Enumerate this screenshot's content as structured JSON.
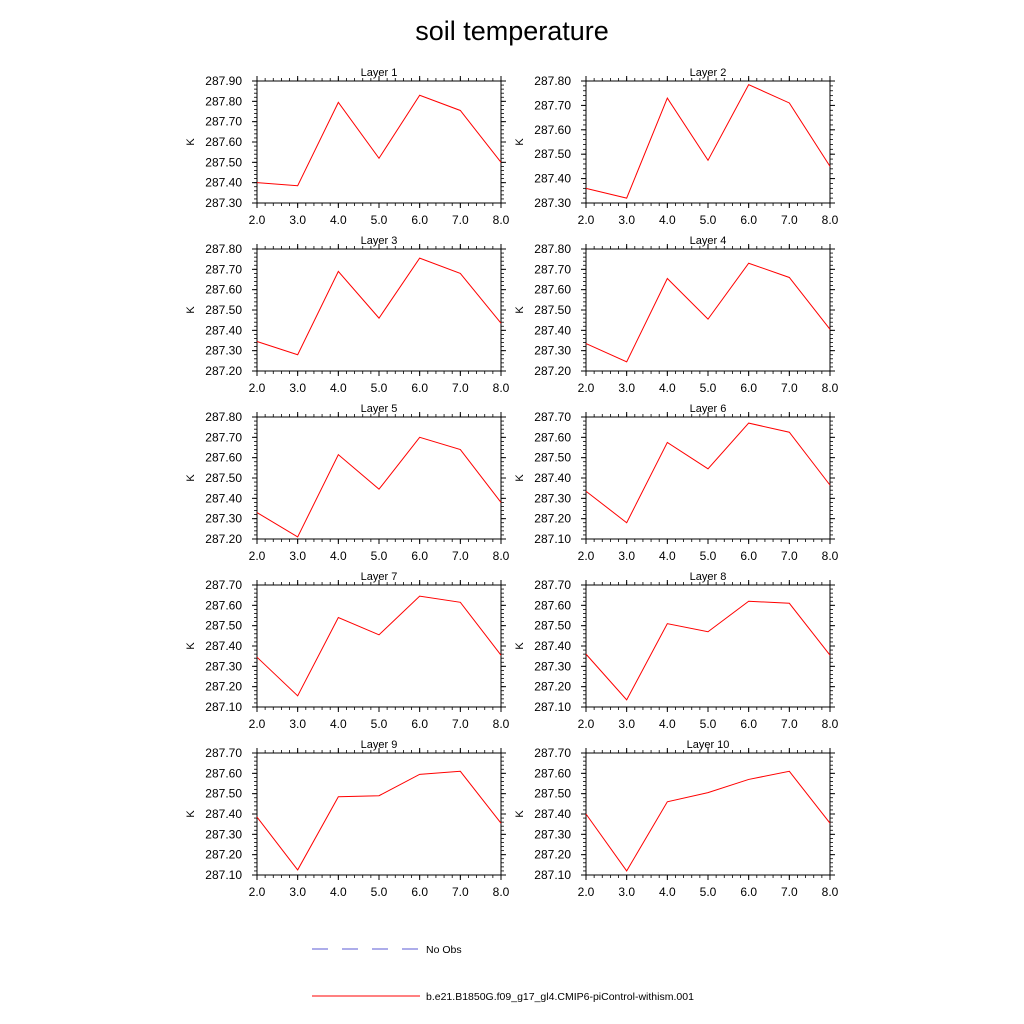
{
  "title": "soil temperature",
  "legend": {
    "items": [
      {
        "label": "No Obs",
        "style": "dashed",
        "color": "#5b5bd6"
      },
      {
        "label": "b.e21.B1850G.f09_g17_gl4.CMIP6-piControl-withism.001",
        "style": "solid",
        "color": "#ff0000"
      }
    ]
  },
  "chart_data": [
    {
      "type": "line",
      "title": "Layer 1",
      "xlabel": "",
      "ylabel": "K",
      "x": [
        2,
        3,
        4,
        5,
        6,
        7,
        8
      ],
      "xlim": [
        2,
        8
      ],
      "xticks": [
        "2.0",
        "3.0",
        "4.0",
        "5.0",
        "6.0",
        "7.0",
        "8.0"
      ],
      "ylim": [
        287.3,
        287.9
      ],
      "yticks": [
        "287.30",
        "287.40",
        "287.50",
        "287.60",
        "287.70",
        "287.80",
        "287.90"
      ],
      "series": [
        {
          "name": "b.e21.B1850G.f09_g17_gl4.CMIP6-piControl-withism.001",
          "values": [
            287.4,
            287.385,
            287.795,
            287.52,
            287.83,
            287.755,
            287.5
          ]
        }
      ]
    },
    {
      "type": "line",
      "title": "Layer 2",
      "xlabel": "",
      "ylabel": "K",
      "x": [
        2,
        3,
        4,
        5,
        6,
        7,
        8
      ],
      "xlim": [
        2,
        8
      ],
      "xticks": [
        "2.0",
        "3.0",
        "4.0",
        "5.0",
        "6.0",
        "7.0",
        "8.0"
      ],
      "ylim": [
        287.3,
        287.8
      ],
      "yticks": [
        "287.30",
        "287.40",
        "287.50",
        "287.60",
        "287.70",
        "287.80"
      ],
      "series": [
        {
          "name": "b.e21.B1850G.f09_g17_gl4.CMIP6-piControl-withism.001",
          "values": [
            287.36,
            287.32,
            287.73,
            287.475,
            287.785,
            287.71,
            287.45
          ]
        }
      ]
    },
    {
      "type": "line",
      "title": "Layer 3",
      "xlabel": "",
      "ylabel": "K",
      "x": [
        2,
        3,
        4,
        5,
        6,
        7,
        8
      ],
      "xlim": [
        2,
        8
      ],
      "xticks": [
        "2.0",
        "3.0",
        "4.0",
        "5.0",
        "6.0",
        "7.0",
        "8.0"
      ],
      "ylim": [
        287.2,
        287.8
      ],
      "yticks": [
        "287.20",
        "287.30",
        "287.40",
        "287.50",
        "287.60",
        "287.70",
        "287.80"
      ],
      "series": [
        {
          "name": "b.e21.B1850G.f09_g17_gl4.CMIP6-piControl-withism.001",
          "values": [
            287.345,
            287.28,
            287.69,
            287.46,
            287.755,
            287.68,
            287.435
          ]
        }
      ]
    },
    {
      "type": "line",
      "title": "Layer 4",
      "xlabel": "",
      "ylabel": "K",
      "x": [
        2,
        3,
        4,
        5,
        6,
        7,
        8
      ],
      "xlim": [
        2,
        8
      ],
      "xticks": [
        "2.0",
        "3.0",
        "4.0",
        "5.0",
        "6.0",
        "7.0",
        "8.0"
      ],
      "ylim": [
        287.2,
        287.8
      ],
      "yticks": [
        "287.20",
        "287.30",
        "287.40",
        "287.50",
        "287.60",
        "287.70",
        "287.80"
      ],
      "series": [
        {
          "name": "b.e21.B1850G.f09_g17_gl4.CMIP6-piControl-withism.001",
          "values": [
            287.335,
            287.245,
            287.655,
            287.455,
            287.73,
            287.66,
            287.405
          ]
        }
      ]
    },
    {
      "type": "line",
      "title": "Layer 5",
      "xlabel": "",
      "ylabel": "K",
      "x": [
        2,
        3,
        4,
        5,
        6,
        7,
        8
      ],
      "xlim": [
        2,
        8
      ],
      "xticks": [
        "2.0",
        "3.0",
        "4.0",
        "5.0",
        "6.0",
        "7.0",
        "8.0"
      ],
      "ylim": [
        287.2,
        287.8
      ],
      "yticks": [
        "287.20",
        "287.30",
        "287.40",
        "287.50",
        "287.60",
        "287.70",
        "287.80"
      ],
      "series": [
        {
          "name": "b.e21.B1850G.f09_g17_gl4.CMIP6-piControl-withism.001",
          "values": [
            287.33,
            287.21,
            287.615,
            287.445,
            287.7,
            287.64,
            287.38
          ]
        }
      ]
    },
    {
      "type": "line",
      "title": "Layer 6",
      "xlabel": "",
      "ylabel": "K",
      "x": [
        2,
        3,
        4,
        5,
        6,
        7,
        8
      ],
      "xlim": [
        2,
        8
      ],
      "xticks": [
        "2.0",
        "3.0",
        "4.0",
        "5.0",
        "6.0",
        "7.0",
        "8.0"
      ],
      "ylim": [
        287.1,
        287.7
      ],
      "yticks": [
        "287.10",
        "287.20",
        "287.30",
        "287.40",
        "287.50",
        "287.60",
        "287.70"
      ],
      "series": [
        {
          "name": "b.e21.B1850G.f09_g17_gl4.CMIP6-piControl-withism.001",
          "values": [
            287.335,
            287.18,
            287.575,
            287.445,
            287.67,
            287.625,
            287.365
          ]
        }
      ]
    },
    {
      "type": "line",
      "title": "Layer 7",
      "xlabel": "",
      "ylabel": "K",
      "x": [
        2,
        3,
        4,
        5,
        6,
        7,
        8
      ],
      "xlim": [
        2,
        8
      ],
      "xticks": [
        "2.0",
        "3.0",
        "4.0",
        "5.0",
        "6.0",
        "7.0",
        "8.0"
      ],
      "ylim": [
        287.1,
        287.7
      ],
      "yticks": [
        "287.10",
        "287.20",
        "287.30",
        "287.40",
        "287.50",
        "287.60",
        "287.70"
      ],
      "series": [
        {
          "name": "b.e21.B1850G.f09_g17_gl4.CMIP6-piControl-withism.001",
          "values": [
            287.345,
            287.155,
            287.54,
            287.455,
            287.645,
            287.615,
            287.355
          ]
        }
      ]
    },
    {
      "type": "line",
      "title": "Layer 8",
      "xlabel": "",
      "ylabel": "K",
      "x": [
        2,
        3,
        4,
        5,
        6,
        7,
        8
      ],
      "xlim": [
        2,
        8
      ],
      "xticks": [
        "2.0",
        "3.0",
        "4.0",
        "5.0",
        "6.0",
        "7.0",
        "8.0"
      ],
      "ylim": [
        287.1,
        287.7
      ],
      "yticks": [
        "287.10",
        "287.20",
        "287.30",
        "287.40",
        "287.50",
        "287.60",
        "287.70"
      ],
      "series": [
        {
          "name": "b.e21.B1850G.f09_g17_gl4.CMIP6-piControl-withism.001",
          "values": [
            287.36,
            287.135,
            287.51,
            287.47,
            287.62,
            287.61,
            287.355
          ]
        }
      ]
    },
    {
      "type": "line",
      "title": "Layer 9",
      "xlabel": "",
      "ylabel": "K",
      "x": [
        2,
        3,
        4,
        5,
        6,
        7,
        8
      ],
      "xlim": [
        2,
        8
      ],
      "xticks": [
        "2.0",
        "3.0",
        "4.0",
        "5.0",
        "6.0",
        "7.0",
        "8.0"
      ],
      "ylim": [
        287.1,
        287.7
      ],
      "yticks": [
        "287.10",
        "287.20",
        "287.30",
        "287.40",
        "287.50",
        "287.60",
        "287.70"
      ],
      "series": [
        {
          "name": "b.e21.B1850G.f09_g17_gl4.CMIP6-piControl-withism.001",
          "values": [
            287.385,
            287.125,
            287.485,
            287.49,
            287.595,
            287.61,
            287.355
          ]
        }
      ]
    },
    {
      "type": "line",
      "title": "Layer 10",
      "xlabel": "",
      "ylabel": "K",
      "x": [
        2,
        3,
        4,
        5,
        6,
        7,
        8
      ],
      "xlim": [
        2,
        8
      ],
      "xticks": [
        "2.0",
        "3.0",
        "4.0",
        "5.0",
        "6.0",
        "7.0",
        "8.0"
      ],
      "ylim": [
        287.1,
        287.7
      ],
      "yticks": [
        "287.10",
        "287.20",
        "287.30",
        "287.40",
        "287.50",
        "287.60",
        "287.70"
      ],
      "series": [
        {
          "name": "b.e21.B1850G.f09_g17_gl4.CMIP6-piControl-withism.001",
          "values": [
            287.4,
            287.12,
            287.46,
            287.505,
            287.57,
            287.61,
            287.355
          ]
        }
      ]
    }
  ]
}
